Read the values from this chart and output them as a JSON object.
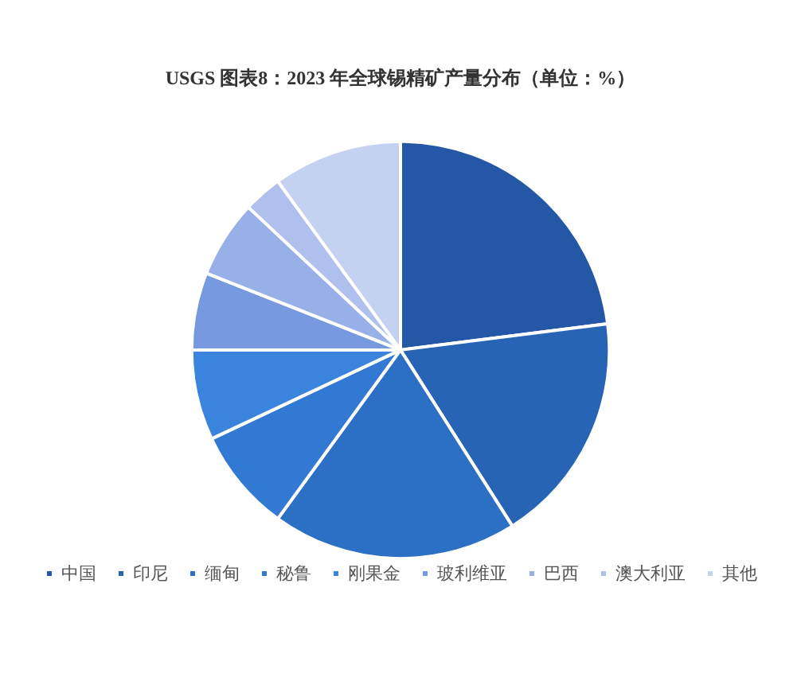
{
  "chart_data": {
    "type": "pie",
    "title": "USGS 图表8：2023 年全球锡精矿产量分布（单位：%）",
    "categories": [
      "中国",
      "印尼",
      "缅甸",
      "秘鲁",
      "刚果金",
      "玻利维亚",
      "巴西",
      "澳大利亚",
      "其他"
    ],
    "values": [
      23,
      18,
      19,
      8,
      7,
      6,
      6,
      3,
      10
    ],
    "colors": [
      "#2458a6",
      "#2864b6",
      "#2c70c6",
      "#3179d2",
      "#3a84de",
      "#7699e0",
      "#98b0e8",
      "#afc0ec",
      "#c5d1f1"
    ],
    "legend": "bottom"
  }
}
